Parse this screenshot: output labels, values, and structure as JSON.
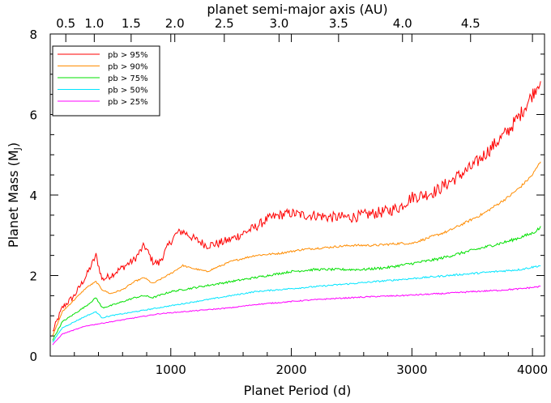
{
  "chart_data": {
    "type": "line",
    "xlabel": "Planet Period (d)",
    "ylabel": "Planet Mass (M",
    "ylabel_sub": "J",
    "ylabel_close": ")",
    "top_axis_label": "planet semi-major axis (AU)",
    "xlim": [
      0,
      4100
    ],
    "ylim": [
      0,
      8
    ],
    "x_ticks": [
      1000,
      2000,
      3000,
      4000
    ],
    "x_tick_labels": [
      "1000",
      "2000",
      "3000",
      "4000"
    ],
    "y_ticks": [
      0,
      2,
      4,
      6,
      8
    ],
    "y_tick_labels": [
      "0",
      "2",
      "4",
      "6",
      "8"
    ],
    "top_ticks_au": [
      0.5,
      1.0,
      1.5,
      2.0,
      2.5,
      3.0,
      3.5,
      4.0,
      4.5
    ],
    "top_tick_labels": [
      "0.5",
      "1.0",
      "1.5",
      "2.0",
      "2.5",
      "3.0",
      "3.5",
      "4.0",
      "4.5"
    ],
    "legend_placement": "top-left",
    "series": [
      {
        "name": "pb > 95%",
        "color": "#ff0000",
        "noise": 0.18,
        "x": [
          20,
          100,
          200,
          300,
          380,
          430,
          500,
          600,
          700,
          780,
          850,
          900,
          1000,
          1050,
          1100,
          1150,
          1200,
          1300,
          1400,
          1500,
          1600,
          1700,
          1800,
          1900,
          2000,
          2100,
          2200,
          2300,
          2400,
          2500,
          2600,
          2700,
          2800,
          2900,
          3000,
          3100,
          3200,
          3300,
          3400,
          3500,
          3600,
          3700,
          3800,
          3900,
          4000,
          4070
        ],
        "y": [
          0.6,
          1.2,
          1.5,
          2.0,
          2.5,
          1.9,
          2.0,
          2.2,
          2.4,
          2.75,
          2.35,
          2.3,
          2.85,
          3.05,
          3.1,
          3.0,
          2.9,
          2.75,
          2.8,
          2.9,
          3.05,
          3.2,
          3.4,
          3.5,
          3.55,
          3.5,
          3.5,
          3.45,
          3.45,
          3.45,
          3.5,
          3.55,
          3.6,
          3.7,
          3.95,
          4.0,
          4.1,
          4.3,
          4.5,
          4.7,
          5.0,
          5.3,
          5.6,
          6.0,
          6.5,
          6.9
        ]
      },
      {
        "name": "pb > 90%",
        "color": "#ff8c00",
        "noise": 0.035,
        "x": [
          20,
          100,
          200,
          300,
          380,
          430,
          500,
          600,
          700,
          780,
          850,
          1000,
          1100,
          1150,
          1300,
          1500,
          1700,
          1900,
          2100,
          2300,
          2500,
          2700,
          2900,
          3000,
          3100,
          3200,
          3300,
          3400,
          3500,
          3600,
          3700,
          3800,
          3900,
          4000,
          4070
        ],
        "y": [
          0.5,
          1.1,
          1.4,
          1.7,
          1.85,
          1.65,
          1.55,
          1.65,
          1.85,
          1.95,
          1.8,
          2.05,
          2.25,
          2.2,
          2.1,
          2.35,
          2.5,
          2.55,
          2.65,
          2.7,
          2.75,
          2.75,
          2.8,
          2.8,
          2.9,
          3.0,
          3.1,
          3.25,
          3.4,
          3.55,
          3.75,
          3.95,
          4.2,
          4.5,
          4.85
        ]
      },
      {
        "name": "pb > 75%",
        "color": "#00e000",
        "noise": 0.04,
        "x": [
          20,
          100,
          200,
          300,
          380,
          430,
          500,
          600,
          700,
          780,
          850,
          1000,
          1200,
          1400,
          1600,
          1800,
          2000,
          2200,
          2400,
          2600,
          2800,
          3000,
          3200,
          3400,
          3600,
          3800,
          4000,
          4070
        ],
        "y": [
          0.4,
          0.85,
          1.05,
          1.25,
          1.45,
          1.2,
          1.25,
          1.35,
          1.45,
          1.5,
          1.45,
          1.6,
          1.7,
          1.8,
          1.9,
          2.0,
          2.1,
          2.15,
          2.15,
          2.15,
          2.2,
          2.3,
          2.4,
          2.55,
          2.7,
          2.85,
          3.05,
          3.2
        ]
      },
      {
        "name": "pb > 50%",
        "color": "#00e5ff",
        "noise": 0.025,
        "x": [
          20,
          100,
          200,
          300,
          380,
          430,
          500,
          700,
          900,
          1100,
          1300,
          1500,
          1700,
          1900,
          2100,
          2300,
          2500,
          2700,
          2900,
          3100,
          3300,
          3500,
          3700,
          3900,
          4070
        ],
        "y": [
          0.35,
          0.7,
          0.85,
          1.0,
          1.1,
          0.95,
          1.0,
          1.1,
          1.2,
          1.3,
          1.4,
          1.5,
          1.6,
          1.65,
          1.7,
          1.75,
          1.8,
          1.85,
          1.9,
          1.95,
          2.0,
          2.05,
          2.1,
          2.15,
          2.25
        ]
      },
      {
        "name": "pb > 25%",
        "color": "#ff00ff",
        "noise": 0.02,
        "x": [
          20,
          100,
          200,
          300,
          400,
          500,
          700,
          900,
          1100,
          1300,
          1500,
          1700,
          1900,
          2100,
          2300,
          2500,
          2700,
          2900,
          3100,
          3300,
          3500,
          3700,
          3900,
          4070
        ],
        "y": [
          0.28,
          0.55,
          0.65,
          0.75,
          0.8,
          0.85,
          0.95,
          1.05,
          1.1,
          1.15,
          1.2,
          1.28,
          1.33,
          1.38,
          1.42,
          1.45,
          1.48,
          1.5,
          1.53,
          1.56,
          1.6,
          1.63,
          1.67,
          1.73
        ]
      }
    ]
  }
}
